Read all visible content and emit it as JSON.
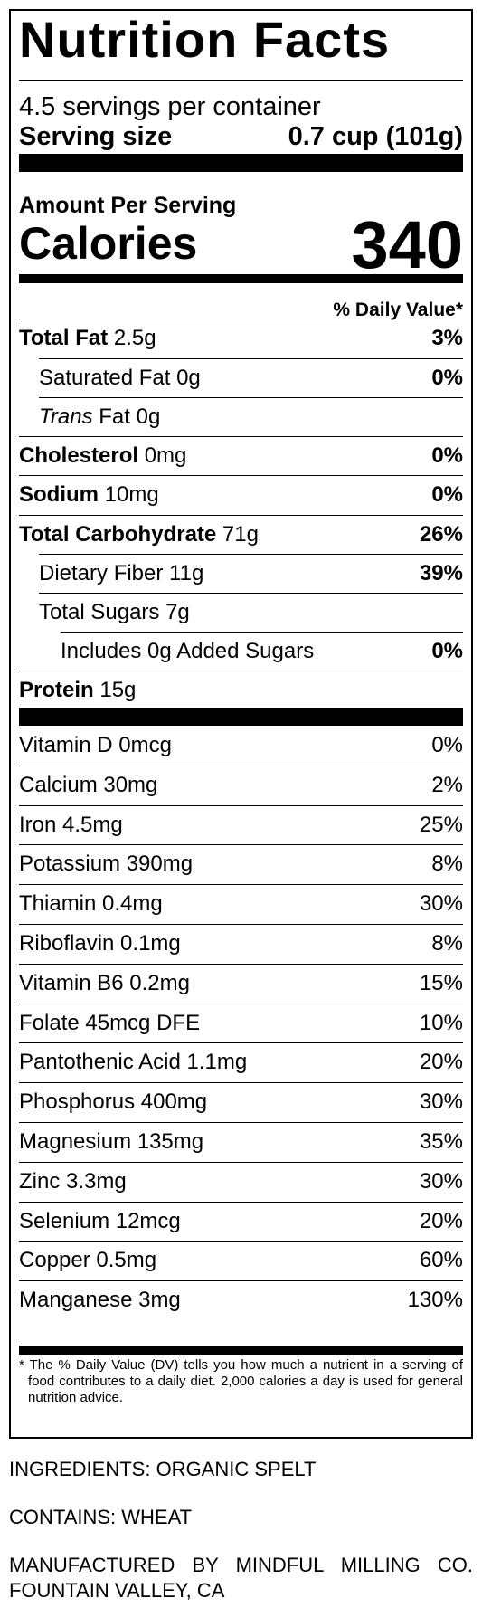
{
  "title": "Nutrition Facts",
  "servings_per_container": "4.5 servings per container",
  "serving_size_label": "Serving size",
  "serving_size_value": "0.7 cup (101g)",
  "amount_per_serving": "Amount Per Serving",
  "calories_label": "Calories",
  "calories_value": "340",
  "daily_value_header": "% Daily Value*",
  "nutrients": [
    {
      "label": "Total Fat",
      "amount": " 2.5g",
      "dv": "3%"
    },
    {
      "label": "Saturated Fat 0g",
      "dv": "0%"
    },
    {
      "label": "Trans",
      "amount": " Fat 0g",
      "dv": ""
    },
    {
      "label": "Cholesterol",
      "amount": " 0mg",
      "dv": "0%"
    },
    {
      "label": "Sodium",
      "amount": " 10mg",
      "dv": "0%"
    },
    {
      "label": "Total Carbohydrate",
      "amount": " 71g",
      "dv": "26%"
    },
    {
      "label": "Dietary Fiber 11g",
      "dv": "39%"
    },
    {
      "label": "Total Sugars 7g",
      "dv": ""
    },
    {
      "label": "Includes 0g Added Sugars",
      "dv": "0%"
    },
    {
      "label": "Protein",
      "amount": " 15g",
      "dv": ""
    }
  ],
  "vitamins": [
    {
      "label": "Vitamin D 0mcg",
      "dv": "0%"
    },
    {
      "label": "Calcium 30mg",
      "dv": "2%"
    },
    {
      "label": "Iron 4.5mg",
      "dv": "25%"
    },
    {
      "label": "Potassium 390mg",
      "dv": "8%"
    },
    {
      "label": "Thiamin 0.4mg",
      "dv": "30%"
    },
    {
      "label": "Riboflavin 0.1mg",
      "dv": "8%"
    },
    {
      "label": "Vitamin B6 0.2mg",
      "dv": "15%"
    },
    {
      "label": "Folate 45mcg DFE",
      "dv": "10%"
    },
    {
      "label": "Pantothenic Acid 1.1mg",
      "dv": "20%"
    },
    {
      "label": "Phosphorus 400mg",
      "dv": "30%"
    },
    {
      "label": "Magnesium 135mg",
      "dv": "35%"
    },
    {
      "label": "Zinc 3.3mg",
      "dv": "30%"
    },
    {
      "label": "Selenium 12mcg",
      "dv": "20%"
    },
    {
      "label": "Copper 0.5mg",
      "dv": "60%"
    },
    {
      "label": "Manganese 3mg",
      "dv": "130%"
    }
  ],
  "footnote": "* The % Daily Value (DV) tells you how much a nutrient in a serving of food contributes to a daily diet. 2,000 calories a day is used for general nutrition advice.",
  "ingredients": "INGREDIENTS: ORGANIC SPELT",
  "contains": "CONTAINS: WHEAT",
  "manufacturer": "MANUFACTURED BY MINDFUL MILLING CO. FOUNTAIN VALLEY, CA"
}
